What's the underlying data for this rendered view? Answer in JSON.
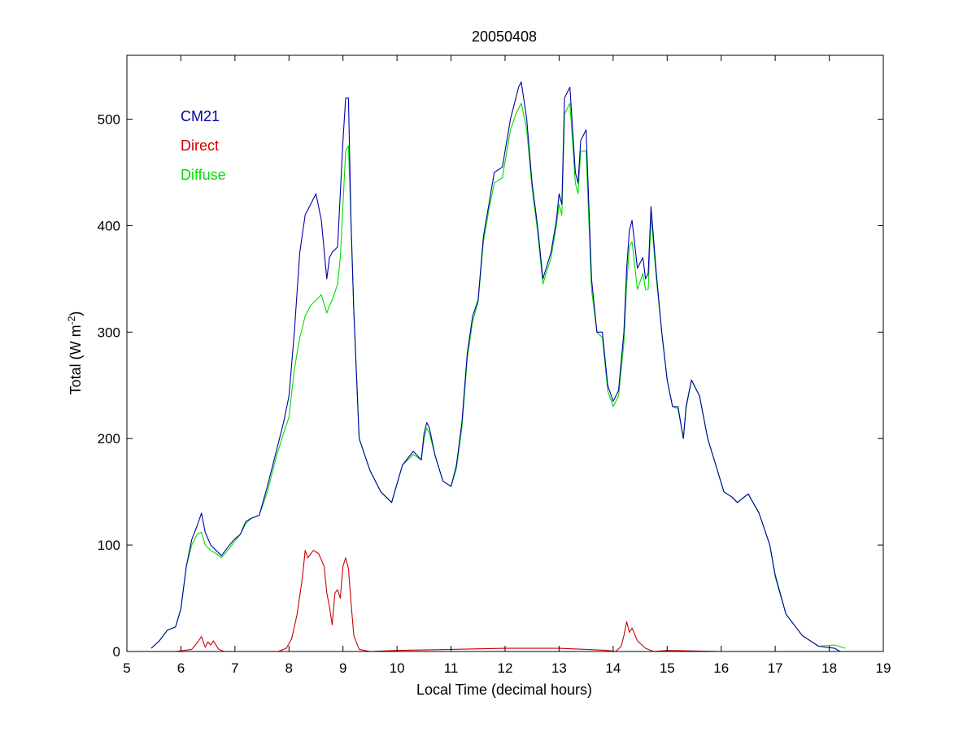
{
  "chart_data": {
    "type": "line",
    "title": "20050408",
    "xlabel": "Local Time (decimal hours)",
    "ylabel": {
      "prefix": "Total (W m",
      "superscript": "-2",
      "suffix": ")"
    },
    "xlim": [
      5,
      19
    ],
    "ylim": [
      0,
      560
    ],
    "xticks": [
      "5",
      "6",
      "7",
      "8",
      "9",
      "10",
      "11",
      "12",
      "13",
      "14",
      "15",
      "16",
      "17",
      "18",
      "19"
    ],
    "yticks": [
      "0",
      "100",
      "200",
      "300",
      "400",
      "500"
    ],
    "xtick_values": [
      5,
      6,
      7,
      8,
      9,
      10,
      11,
      12,
      13,
      14,
      15,
      16,
      17,
      18,
      19
    ],
    "ytick_values": [
      0,
      100,
      200,
      300,
      400,
      500
    ],
    "grid": false,
    "legend_placement": "top-left",
    "series": [
      {
        "name": "CM21",
        "color": "#0000a8",
        "x": [
          5.45,
          5.6,
          5.75,
          5.9,
          6.0,
          6.1,
          6.2,
          6.3,
          6.38,
          6.45,
          6.55,
          6.65,
          6.75,
          6.9,
          7.0,
          7.1,
          7.2,
          7.3,
          7.45,
          7.6,
          7.75,
          7.9,
          8.0,
          8.1,
          8.2,
          8.3,
          8.4,
          8.5,
          8.6,
          8.7,
          8.75,
          8.8,
          8.9,
          8.95,
          9.0,
          9.05,
          9.1,
          9.15,
          9.2,
          9.3,
          9.5,
          9.7,
          9.9,
          10.1,
          10.3,
          10.45,
          10.5,
          10.55,
          10.6,
          10.7,
          10.85,
          11.0,
          11.1,
          11.2,
          11.3,
          11.4,
          11.5,
          11.6,
          11.7,
          11.8,
          11.95,
          12.1,
          12.2,
          12.25,
          12.3,
          12.4,
          12.5,
          12.6,
          12.7,
          12.85,
          12.95,
          13.0,
          13.05,
          13.1,
          13.2,
          13.3,
          13.35,
          13.4,
          13.5,
          13.6,
          13.7,
          13.8,
          13.9,
          14.0,
          14.1,
          14.2,
          14.25,
          14.3,
          14.35,
          14.45,
          14.55,
          14.6,
          14.65,
          14.7,
          14.8,
          14.9,
          15.0,
          15.1,
          15.2,
          15.3,
          15.35,
          15.45,
          15.6,
          15.75,
          15.9,
          16.05,
          16.2,
          16.3,
          16.5,
          16.7,
          16.9,
          17.0,
          17.2,
          17.5,
          17.8,
          18.1,
          18.2
        ],
        "y": [
          3,
          10,
          20,
          23,
          40,
          80,
          105,
          118,
          130,
          112,
          100,
          95,
          90,
          100,
          106,
          110,
          122,
          125,
          128,
          155,
          185,
          215,
          240,
          300,
          375,
          410,
          420,
          430,
          405,
          350,
          370,
          375,
          380,
          430,
          480,
          520,
          520,
          400,
          320,
          200,
          170,
          150,
          140,
          175,
          188,
          180,
          205,
          215,
          210,
          185,
          160,
          155,
          175,
          215,
          280,
          315,
          330,
          390,
          420,
          450,
          455,
          500,
          520,
          530,
          535,
          500,
          440,
          400,
          350,
          375,
          405,
          430,
          420,
          520,
          530,
          450,
          440,
          480,
          490,
          350,
          300,
          300,
          250,
          235,
          245,
          300,
          360,
          395,
          405,
          360,
          370,
          350,
          355,
          418,
          355,
          300,
          255,
          230,
          230,
          200,
          230,
          255,
          240,
          200,
          175,
          150,
          145,
          140,
          148,
          130,
          100,
          72,
          35,
          15,
          5,
          3,
          0
        ]
      },
      {
        "name": "Direct",
        "color": "#cc0000",
        "x": [
          5.7,
          5.9,
          6.2,
          6.3,
          6.38,
          6.45,
          6.5,
          6.55,
          6.6,
          6.7,
          6.8,
          7.0,
          7.5,
          7.8,
          7.95,
          8.05,
          8.15,
          8.25,
          8.3,
          8.35,
          8.45,
          8.55,
          8.65,
          8.7,
          8.75,
          8.8,
          8.85,
          8.9,
          8.95,
          9.0,
          9.05,
          9.1,
          9.15,
          9.2,
          9.3,
          9.5,
          10.0,
          11.0,
          12.0,
          13.0,
          13.5,
          13.9,
          14.05,
          14.15,
          14.2,
          14.25,
          14.3,
          14.35,
          14.45,
          14.6,
          14.75,
          15.0,
          16.0,
          16.6
        ],
        "y": [
          0,
          0,
          2,
          8,
          14,
          4,
          9,
          6,
          10,
          2,
          0,
          0,
          0,
          0,
          3,
          12,
          35,
          70,
          95,
          88,
          95,
          92,
          80,
          55,
          42,
          25,
          55,
          58,
          50,
          80,
          88,
          78,
          45,
          15,
          2,
          0,
          1,
          2,
          3,
          3,
          2,
          1,
          0,
          5,
          15,
          28,
          18,
          22,
          10,
          3,
          0,
          1,
          0,
          0
        ]
      },
      {
        "name": "Diffuse",
        "color": "#00dd00",
        "x": [
          5.45,
          5.6,
          5.75,
          5.9,
          6.0,
          6.1,
          6.2,
          6.3,
          6.38,
          6.45,
          6.55,
          6.65,
          6.75,
          6.9,
          7.0,
          7.1,
          7.2,
          7.3,
          7.45,
          7.6,
          7.75,
          7.9,
          8.0,
          8.1,
          8.2,
          8.3,
          8.4,
          8.5,
          8.6,
          8.7,
          8.75,
          8.8,
          8.9,
          8.95,
          9.0,
          9.05,
          9.1,
          9.15,
          9.2,
          9.3,
          9.5,
          9.7,
          9.9,
          10.1,
          10.3,
          10.45,
          10.5,
          10.55,
          10.6,
          10.7,
          10.85,
          11.0,
          11.1,
          11.2,
          11.3,
          11.4,
          11.5,
          11.6,
          11.7,
          11.8,
          11.95,
          12.1,
          12.2,
          12.25,
          12.3,
          12.4,
          12.5,
          12.6,
          12.7,
          12.85,
          12.95,
          13.0,
          13.05,
          13.1,
          13.2,
          13.3,
          13.35,
          13.4,
          13.5,
          13.6,
          13.7,
          13.8,
          13.9,
          14.0,
          14.1,
          14.2,
          14.25,
          14.3,
          14.35,
          14.45,
          14.55,
          14.6,
          14.65,
          14.7,
          14.8,
          14.9,
          15.0,
          15.1,
          15.2,
          15.3,
          15.35,
          15.45,
          15.6,
          15.75,
          15.9,
          16.05,
          16.2,
          16.3,
          16.5,
          16.7,
          16.9,
          17.0,
          17.2,
          17.5,
          17.8,
          18.1,
          18.3
        ],
        "y": [
          3,
          10,
          20,
          23,
          40,
          80,
          100,
          110,
          112,
          100,
          95,
          92,
          88,
          97,
          104,
          110,
          120,
          125,
          128,
          150,
          180,
          205,
          220,
          265,
          295,
          315,
          325,
          330,
          335,
          318,
          325,
          330,
          345,
          370,
          420,
          470,
          475,
          400,
          320,
          200,
          170,
          150,
          140,
          175,
          185,
          180,
          200,
          210,
          205,
          185,
          160,
          155,
          172,
          210,
          275,
          310,
          328,
          385,
          415,
          440,
          445,
          490,
          505,
          510,
          515,
          490,
          435,
          395,
          345,
          370,
          400,
          420,
          410,
          505,
          515,
          440,
          430,
          470,
          470,
          340,
          300,
          295,
          245,
          230,
          240,
          290,
          345,
          380,
          385,
          340,
          355,
          340,
          340,
          410,
          350,
          300,
          255,
          230,
          228,
          200,
          228,
          255,
          240,
          200,
          175,
          150,
          145,
          140,
          148,
          130,
          100,
          70,
          35,
          15,
          5,
          6,
          3
        ]
      }
    ]
  }
}
